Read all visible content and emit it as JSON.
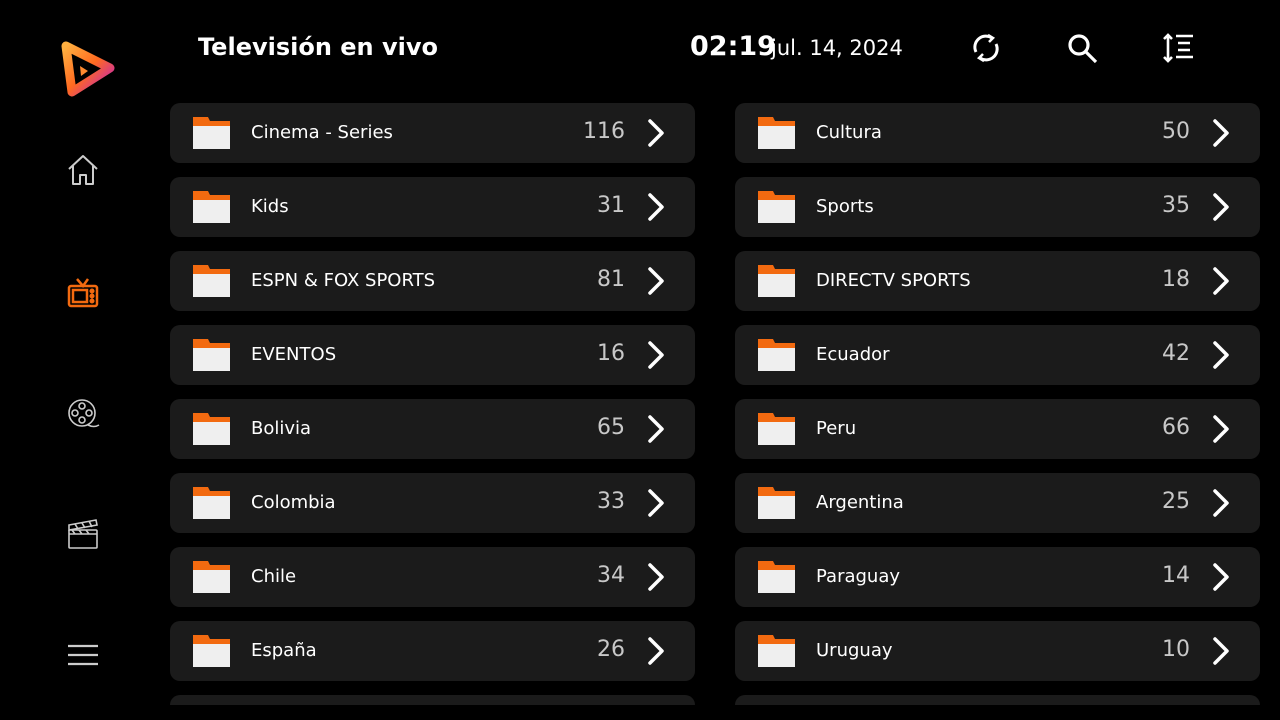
{
  "header": {
    "title": "Televisión en vivo",
    "time": "02:19",
    "date": "jul. 14, 2024"
  },
  "header_icons": [
    "refresh-icon",
    "search-icon",
    "sort-icon"
  ],
  "sidebar": {
    "items": [
      {
        "icon": "home-icon"
      },
      {
        "icon": "tv-icon",
        "active": true
      },
      {
        "icon": "film-reel-icon"
      },
      {
        "icon": "clapperboard-icon"
      },
      {
        "icon": "menu-icon"
      }
    ]
  },
  "colors": {
    "accent": "#f26a10",
    "row_bg": "#1b1b1b",
    "folder_body": "#efefef"
  },
  "categories": {
    "left": [
      {
        "name": "Cinema - Series",
        "count": "116"
      },
      {
        "name": "Kids",
        "count": "31"
      },
      {
        "name": "ESPN & FOX SPORTS",
        "count": "81"
      },
      {
        "name": "EVENTOS",
        "count": "16"
      },
      {
        "name": "Bolivia",
        "count": "65"
      },
      {
        "name": "Colombia",
        "count": "33"
      },
      {
        "name": "Chile",
        "count": "34"
      },
      {
        "name": "España",
        "count": "26"
      }
    ],
    "right": [
      {
        "name": "Cultura",
        "count": "50"
      },
      {
        "name": "Sports",
        "count": "35"
      },
      {
        "name": "DIRECTV SPORTS",
        "count": "18"
      },
      {
        "name": "Ecuador",
        "count": "42"
      },
      {
        "name": "Peru",
        "count": "66"
      },
      {
        "name": "Argentina",
        "count": "25"
      },
      {
        "name": "Paraguay",
        "count": "14"
      },
      {
        "name": "Uruguay",
        "count": "10"
      }
    ]
  }
}
